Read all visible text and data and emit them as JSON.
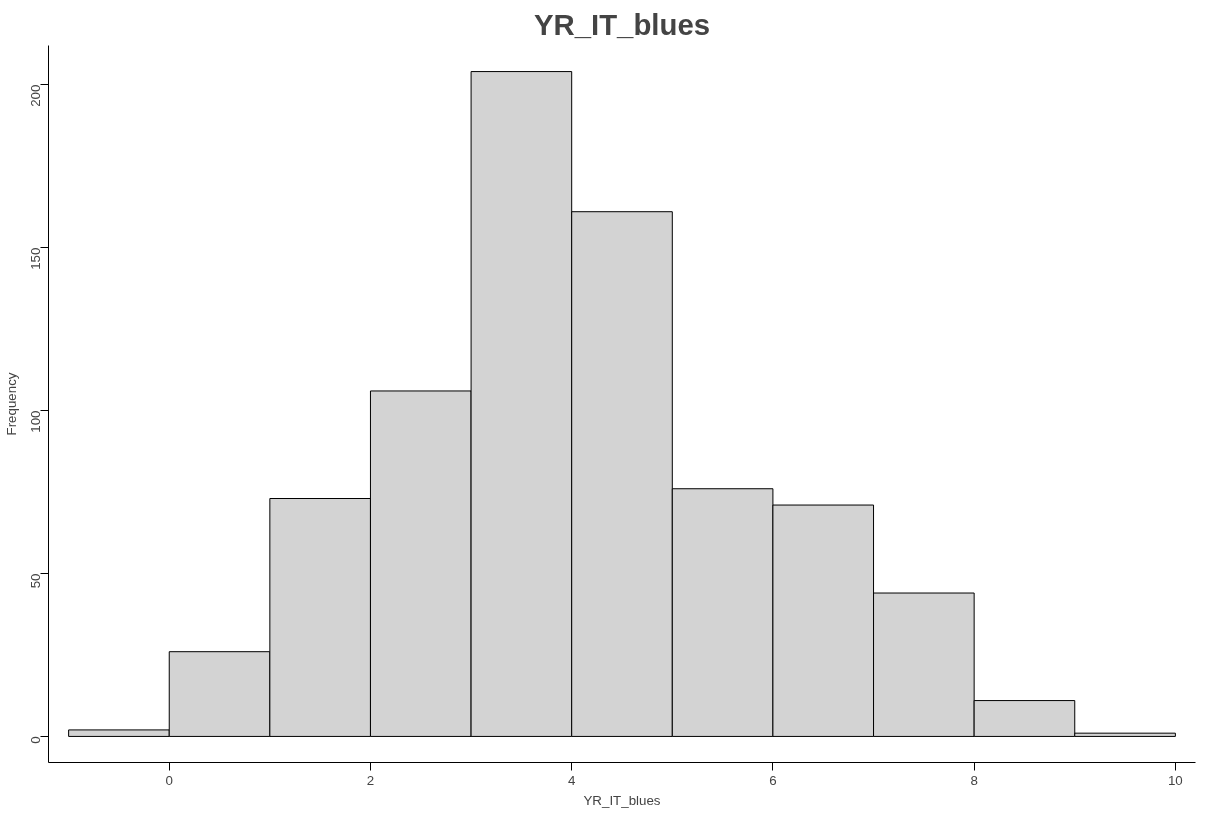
{
  "chart_data": {
    "type": "histogram",
    "title": "YR_IT_blues",
    "xlabel": "YR_IT_blues",
    "ylabel": "Frequency",
    "bins": [
      -1,
      0,
      1,
      2,
      3,
      4,
      5,
      6,
      7,
      8,
      9,
      10
    ],
    "values": [
      2,
      26,
      73,
      106,
      204,
      161,
      76,
      71,
      44,
      11,
      1
    ],
    "color": "#d3d3d3",
    "xlim": [
      -1.2,
      10.2
    ],
    "ylim": [
      -8,
      212
    ],
    "xticks": [
      0,
      2,
      4,
      6,
      8,
      10
    ],
    "yticks": [
      0,
      50,
      100,
      150,
      200
    ],
    "grid": false
  }
}
